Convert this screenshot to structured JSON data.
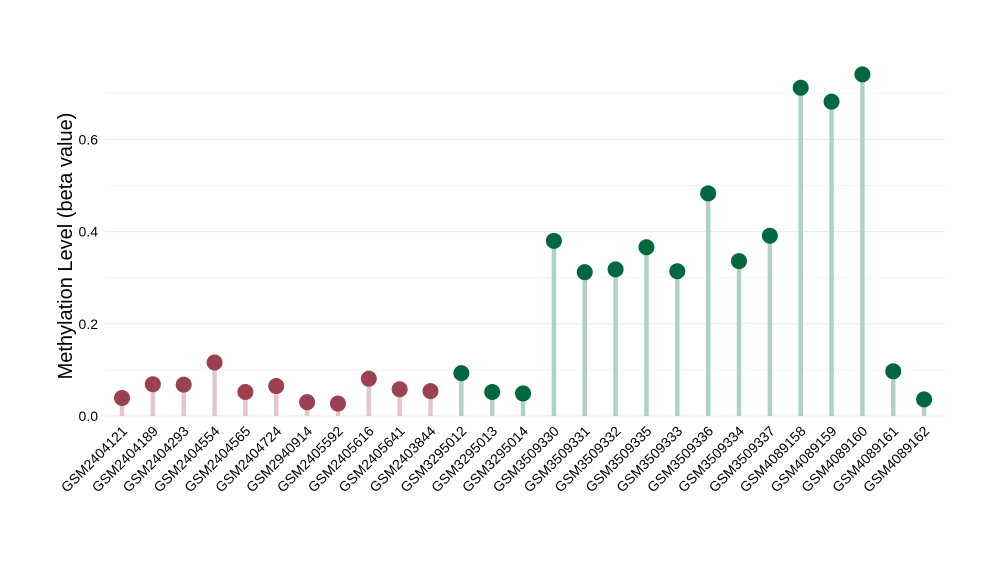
{
  "chart_data": {
    "type": "lollipop",
    "ylabel": "Methylation Level (beta value)",
    "ylim": [
      0,
      0.75
    ],
    "yticks": [
      0.0,
      0.2,
      0.4,
      0.6
    ],
    "ytick_labels": [
      "0.0",
      "0.2",
      "0.4",
      "0.6"
    ],
    "grid": true,
    "colors": {
      "group_a_point": "#9b4150",
      "group_a_stem": "#e2c6cc",
      "group_b_point": "#00673e",
      "group_b_stem": "#aed3c5"
    },
    "categories": [
      "GSM2404121",
      "GSM2404189",
      "GSM2404293",
      "GSM2404554",
      "GSM2404565",
      "GSM2404724",
      "GSM2940914",
      "GSM2405592",
      "GSM2405616",
      "GSM2405641",
      "GSM2403844",
      "GSM3295012",
      "GSM3295013",
      "GSM3295014",
      "GSM3509330",
      "GSM3509331",
      "GSM3509332",
      "GSM3509335",
      "GSM3509333",
      "GSM3509336",
      "GSM3509334",
      "GSM3509337",
      "GSM4089158",
      "GSM4089159",
      "GSM4089160",
      "GSM4089161",
      "GSM4089162"
    ],
    "values": [
      0.039,
      0.069,
      0.068,
      0.116,
      0.052,
      0.065,
      0.03,
      0.027,
      0.081,
      0.058,
      0.054,
      0.093,
      0.052,
      0.049,
      0.38,
      0.312,
      0.318,
      0.366,
      0.314,
      0.483,
      0.336,
      0.391,
      0.712,
      0.682,
      0.741,
      0.097,
      0.036
    ],
    "groups": [
      "a",
      "a",
      "a",
      "a",
      "a",
      "a",
      "a",
      "a",
      "a",
      "a",
      "a",
      "b",
      "b",
      "b",
      "b",
      "b",
      "b",
      "b",
      "b",
      "b",
      "b",
      "b",
      "b",
      "b",
      "b",
      "b",
      "b"
    ]
  }
}
